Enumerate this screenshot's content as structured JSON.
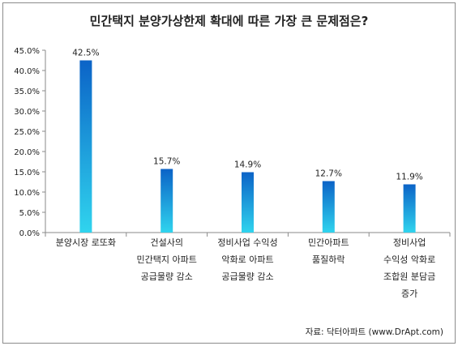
{
  "chart_data": {
    "type": "bar",
    "title": "민간택지 분양가상한제 확대에 따른 가장 큰 문제점은?",
    "categories": [
      [
        "분양시장 로또화"
      ],
      [
        "건설사의",
        "민간택지 아파트",
        "공급물량 감소"
      ],
      [
        "정비사업 수익성",
        "악화로 아파트",
        "공급물량 감소"
      ],
      [
        "민간아파트",
        "품질하락"
      ],
      [
        "정비사업",
        "수익성 악화로",
        "조합원 분담금",
        "증가"
      ]
    ],
    "values": [
      42.5,
      15.7,
      14.9,
      12.7,
      11.9
    ],
    "data_labels": [
      "42.5%",
      "15.7%",
      "14.9%",
      "12.7%",
      "11.9%"
    ],
    "ylim": [
      0,
      45
    ],
    "yticks": [
      "0.0%",
      "5.0%",
      "10.0%",
      "15.0%",
      "20.0%",
      "25.0%",
      "30.0%",
      "35.0%",
      "40.0%",
      "45.0%"
    ],
    "xlabel": "",
    "ylabel": "",
    "grid": false,
    "bar_colors": {
      "top": "#0b63c7",
      "bottom": "#30d4ee"
    },
    "source": "자료: 닥터아파트 (www.DrApt.com)"
  }
}
